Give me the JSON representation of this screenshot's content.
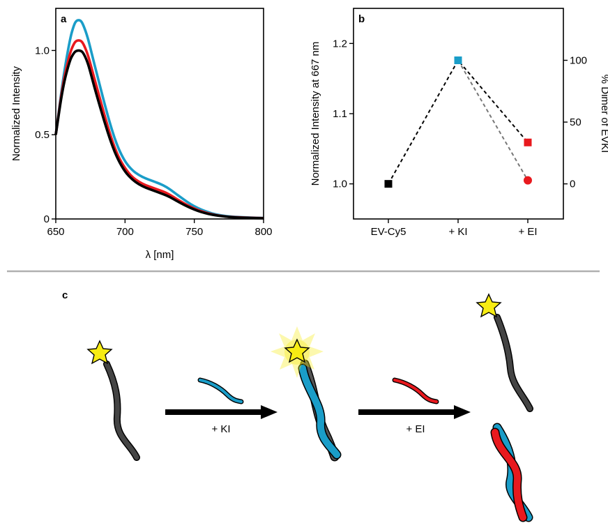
{
  "chart_data": [
    {
      "panel": "a",
      "type": "line",
      "xlabel": "λ [nm]",
      "ylabel": "Normalized Intensity",
      "xlim": [
        650,
        800
      ],
      "ylim": [
        0,
        1.25
      ],
      "xticks": [
        "650",
        "700",
        "750",
        "800"
      ],
      "yticks": [
        "0",
        "0.5",
        "1.0"
      ],
      "x": [
        650,
        655,
        660,
        663,
        665,
        668,
        670,
        673,
        676,
        680,
        685,
        690,
        695,
        700,
        705,
        710,
        715,
        720,
        725,
        730,
        735,
        740,
        745,
        750,
        755,
        760,
        765,
        770,
        775,
        780,
        790,
        800
      ],
      "series": [
        {
          "color": "#1a9dc8",
          "values": [
            0.5,
            0.82,
            1.06,
            1.15,
            1.18,
            1.18,
            1.15,
            1.08,
            0.98,
            0.85,
            0.69,
            0.54,
            0.42,
            0.34,
            0.29,
            0.26,
            0.24,
            0.225,
            0.21,
            0.19,
            0.16,
            0.13,
            0.1,
            0.075,
            0.055,
            0.04,
            0.028,
            0.02,
            0.015,
            0.012,
            0.008,
            0.006
          ]
        },
        {
          "color": "#e8191e",
          "values": [
            0.5,
            0.8,
            0.98,
            1.04,
            1.06,
            1.06,
            1.04,
            0.98,
            0.89,
            0.77,
            0.62,
            0.48,
            0.37,
            0.3,
            0.25,
            0.22,
            0.2,
            0.185,
            0.17,
            0.155,
            0.13,
            0.105,
            0.082,
            0.062,
            0.046,
            0.033,
            0.024,
            0.017,
            0.013,
            0.01,
            0.007,
            0.005
          ]
        },
        {
          "color": "#000000",
          "values": [
            0.5,
            0.78,
            0.94,
            0.985,
            1.0,
            1.0,
            0.985,
            0.93,
            0.84,
            0.72,
            0.58,
            0.45,
            0.35,
            0.28,
            0.235,
            0.205,
            0.185,
            0.17,
            0.155,
            0.14,
            0.118,
            0.095,
            0.074,
            0.056,
            0.041,
            0.03,
            0.022,
            0.016,
            0.012,
            0.009,
            0.006,
            0.004
          ]
        }
      ]
    },
    {
      "panel": "b",
      "type": "scatter",
      "categories": [
        "EV-Cy5",
        "+ KI",
        "+ EI"
      ],
      "ylabel": "Normalized Intensity at 667 nm",
      "y2label": "% Dimer of EVKI",
      "ylim": [
        0.95,
        1.25
      ],
      "yticks": [
        "1.0",
        "1.1",
        "1.2"
      ],
      "y2ticks": [
        "0",
        "50",
        "100"
      ],
      "series": [
        {
          "marker": "square",
          "line": "black dashed",
          "points": [
            {
              "cat": "EV-Cy5",
              "y": 1.0,
              "color": "#000000"
            },
            {
              "cat": "+ KI",
              "y": 1.176,
              "color": "#1a9dc8"
            },
            {
              "cat": "+ EI",
              "y": 1.059,
              "color": "#e8191e"
            }
          ]
        },
        {
          "marker": "circle",
          "line": "grey dashed",
          "points": [
            {
              "cat": "+ KI",
              "y": 1.176,
              "color": "#1a9dc8"
            },
            {
              "cat": "+ EI",
              "y": 1.005,
              "color": "#e8191e"
            }
          ]
        }
      ]
    }
  ],
  "panels": {
    "a": "a",
    "b": "b",
    "c": "c"
  },
  "schematic": {
    "arrow1_label": "+ KI",
    "arrow2_label": "+ EI",
    "colors": {
      "ev": "#444444",
      "ki": "#1a9dc8",
      "ei": "#e8191e",
      "star": "#f7ec13"
    }
  }
}
